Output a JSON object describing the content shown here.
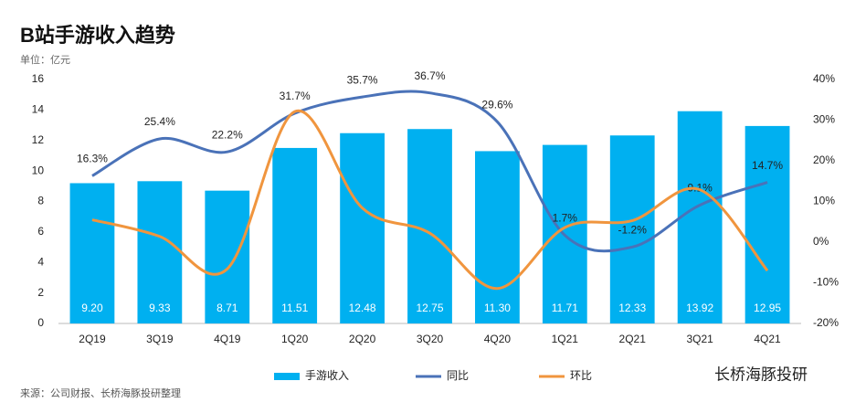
{
  "chart_data": {
    "type": "bar",
    "title": "B站手游收入趋势",
    "subtitle": "单位：亿元",
    "source": "来源：公司财报、长桥海豚投研整理",
    "watermark": "长桥海豚投研",
    "categories": [
      "2Q19",
      "3Q19",
      "4Q19",
      "1Q20",
      "2Q20",
      "3Q20",
      "4Q20",
      "1Q21",
      "2Q21",
      "3Q21",
      "4Q21"
    ],
    "ylim": [
      0,
      16
    ],
    "yticks": [
      0,
      2,
      4,
      6,
      8,
      10,
      12,
      14,
      16
    ],
    "y2lim": [
      -20,
      40
    ],
    "y2ticks": [
      {
        "value": -20,
        "label": "-20%"
      },
      {
        "value": -10,
        "label": "-10%"
      },
      {
        "value": 0,
        "label": "0%"
      },
      {
        "value": 10,
        "label": "10%"
      },
      {
        "value": 20,
        "label": "20%"
      },
      {
        "value": 30,
        "label": "30%"
      },
      {
        "value": 40,
        "label": "40%"
      }
    ],
    "series": [
      {
        "name": "手游收入",
        "type": "bar",
        "color": "#00b0f0",
        "values": [
          9.2,
          9.33,
          8.71,
          11.51,
          12.48,
          12.75,
          11.3,
          11.71,
          12.33,
          13.92,
          12.95
        ],
        "value_labels": [
          "9.20",
          "9.33",
          "8.71",
          "11.51",
          "12.48",
          "12.75",
          "11.30",
          "11.71",
          "12.33",
          "13.92",
          "12.95"
        ]
      },
      {
        "name": "同比",
        "type": "line",
        "axis": "y2",
        "color": "#4a72b8",
        "values": [
          16.3,
          25.4,
          22.2,
          31.7,
          35.7,
          36.7,
          29.6,
          1.7,
          -1.2,
          9.1,
          14.7
        ],
        "value_labels": [
          "16.3%",
          "25.4%",
          "22.2%",
          "31.7%",
          "35.7%",
          "36.7%",
          "29.6%",
          "1.7%",
          "-1.2%",
          "9.1%",
          "14.7%"
        ]
      },
      {
        "name": "环比",
        "type": "line",
        "axis": "y2",
        "color": "#f0953e",
        "values": [
          5.5,
          1.4,
          -6.6,
          32.1,
          8.4,
          2.2,
          -11.4,
          3.6,
          5.3,
          12.9,
          -7.0
        ]
      }
    ]
  }
}
